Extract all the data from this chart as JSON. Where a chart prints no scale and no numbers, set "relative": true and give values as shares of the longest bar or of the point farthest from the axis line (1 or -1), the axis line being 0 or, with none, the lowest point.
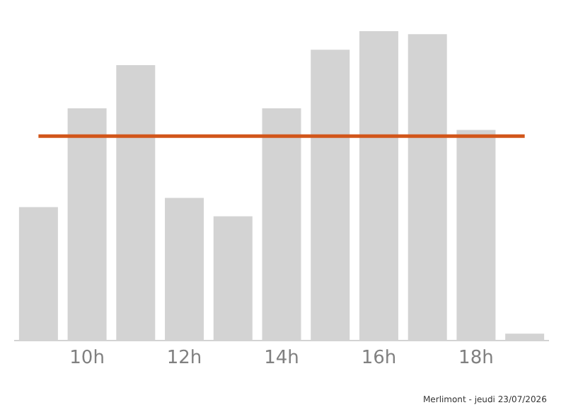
{
  "chart_data": {
    "type": "bar",
    "relative": true,
    "categories": [
      null,
      "10h",
      null,
      "12h",
      null,
      "14h",
      null,
      "16h",
      null,
      "18h",
      null
    ],
    "values": [
      0.43,
      0.75,
      0.89,
      0.46,
      0.4,
      0.75,
      0.94,
      1,
      0.99,
      0.68,
      0.02
    ],
    "color": "#d3d3d3",
    "ref_lines": [
      {
        "axis": "y",
        "value": 0.66,
        "color": "#d2561a",
        "line_style": "solid"
      }
    ],
    "annotations": [
      "Merlimont - jeudi 23/07/2026"
    ]
  }
}
